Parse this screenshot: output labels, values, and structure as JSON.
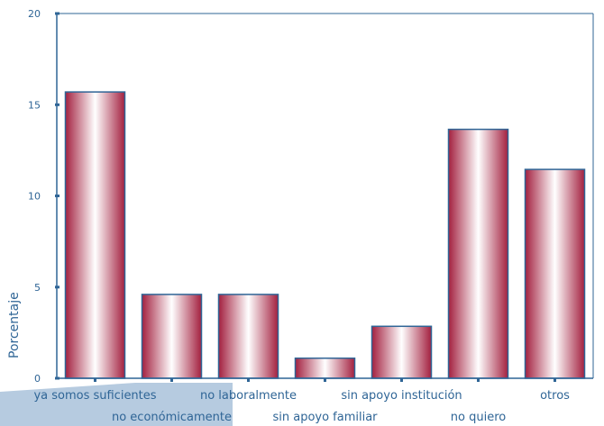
{
  "chart_data": {
    "type": "bar",
    "ylabel": "Porcentaje",
    "ylim": [
      0,
      20
    ],
    "yticks": [
      0,
      5,
      10,
      15,
      20
    ],
    "grid": false,
    "categories": [
      "ya somos suficientes",
      "no económicamente",
      "no laboralmente",
      "sin apoyo familiar",
      "sin apoyo institución",
      "no quiero",
      "otros"
    ],
    "values": [
      15.7,
      4.6,
      4.6,
      1.1,
      2.85,
      13.65,
      11.45
    ],
    "colors": {
      "bar_edge": "#a3203f",
      "bar_center": "#ffffff",
      "axis": "#2f6596",
      "text": "#2f6596",
      "shadow": "#b6cbe0"
    }
  }
}
